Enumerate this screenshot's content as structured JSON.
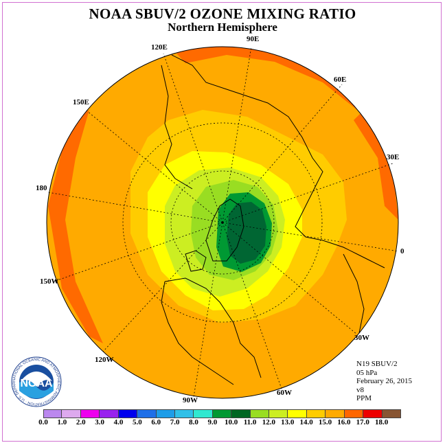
{
  "title": "NOAA SBUV/2 OZONE MIXING RATIO",
  "subtitle": "Northern Hemisphere",
  "longitude_labels": {
    "e90": "90E",
    "e60": "60E",
    "e30": "30E",
    "zero": "0",
    "w30": "30W",
    "w60": "60W",
    "w90": "90W",
    "w120": "120W",
    "w150": "150W",
    "l180": "180",
    "e150": "150E",
    "e120": "120E"
  },
  "info": {
    "satellite": "N19 SBUV/2",
    "level": "05 hPa",
    "date": "February 26, 2015",
    "version": "v8",
    "units": "PPM"
  },
  "logo": {
    "name": "NOAA",
    "ring_text": "NATIONAL OCEANIC AND ATMOSPHERIC ADMINISTRATION · U.S. DEPARTMENT OF COMMERCE"
  },
  "legend": {
    "colors": [
      "#bb88ee",
      "#dda9ee",
      "#ee00ee",
      "#9922ee",
      "#0000ee",
      "#1e6fe8",
      "#1e9de8",
      "#30c0e8",
      "#30e8d0",
      "#009933",
      "#006622",
      "#99dd22",
      "#ccee22",
      "#ffff00",
      "#ffcc00",
      "#ffaa00",
      "#ff6600",
      "#ee0000",
      "#885533"
    ],
    "ticks": [
      "0.0",
      "1.0",
      "2.0",
      "3.0",
      "4.0",
      "5.0",
      "6.0",
      "7.0",
      "8.0",
      "9.0",
      "10.0",
      "11.0",
      "12.0",
      "13.0",
      "14.0",
      "15.0",
      "16.0",
      "17.0",
      "18.0"
    ]
  },
  "map_colors": {
    "rim": "#ff6a00",
    "outer": "#ffaa00",
    "band_14": "#ffcc00",
    "band_13": "#ffff00",
    "band_12": "#ccee22",
    "band_11": "#99dd22",
    "band_10": "#009933",
    "band_9": "#006633",
    "land": "#000000",
    "grid": "#000000"
  }
}
